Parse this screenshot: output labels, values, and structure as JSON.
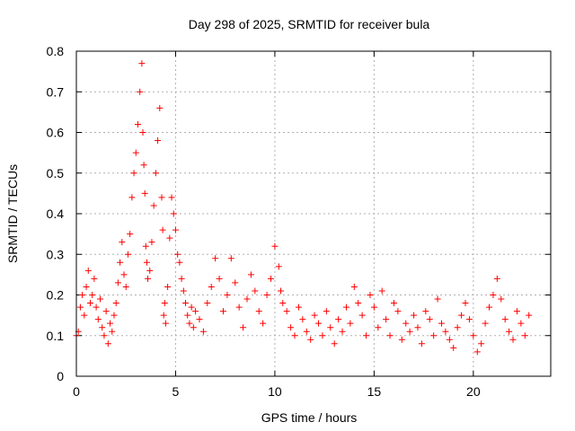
{
  "chart_data": {
    "type": "scatter",
    "title": "Day 298 of 2025, SRMTID for receiver bula",
    "xlabel": "GPS time / hours",
    "ylabel": "SRMTID / TECUs",
    "xlim": [
      0,
      23.9
    ],
    "ylim": [
      0,
      0.8
    ],
    "xticks": [
      0,
      5,
      10,
      15,
      20
    ],
    "yticks": [
      0,
      0.1,
      0.2,
      0.3,
      0.4,
      0.5,
      0.6,
      0.7,
      0.8
    ],
    "grid": true,
    "marker": "+",
    "series": [
      {
        "name": "SRMTID",
        "color": "#ff0000",
        "x": [
          0.0,
          0.1,
          0.2,
          0.3,
          0.4,
          0.5,
          0.6,
          0.7,
          0.8,
          0.9,
          1.0,
          1.1,
          1.2,
          1.3,
          1.4,
          1.5,
          1.6,
          1.7,
          1.8,
          1.9,
          2.0,
          2.1,
          2.2,
          2.3,
          2.4,
          2.5,
          2.6,
          2.7,
          2.8,
          2.9,
          3.0,
          3.1,
          3.2,
          3.3,
          3.35,
          3.4,
          3.45,
          3.5,
          3.55,
          3.6,
          3.7,
          3.8,
          3.9,
          4.0,
          4.1,
          4.2,
          4.3,
          4.35,
          4.4,
          4.45,
          4.5,
          4.6,
          4.7,
          4.8,
          4.9,
          5.0,
          5.1,
          5.2,
          5.3,
          5.4,
          5.5,
          5.6,
          5.7,
          5.8,
          5.9,
          6.0,
          6.2,
          6.4,
          6.6,
          6.8,
          7.0,
          7.2,
          7.4,
          7.6,
          7.8,
          8.0,
          8.2,
          8.4,
          8.6,
          8.8,
          9.0,
          9.2,
          9.4,
          9.6,
          9.8,
          10.0,
          10.2,
          10.3,
          10.4,
          10.6,
          10.8,
          11.0,
          11.2,
          11.4,
          11.6,
          11.8,
          12.0,
          12.2,
          12.4,
          12.6,
          12.8,
          13.0,
          13.2,
          13.4,
          13.6,
          13.8,
          14.0,
          14.2,
          14.4,
          14.6,
          14.8,
          15.0,
          15.2,
          15.4,
          15.6,
          15.8,
          16.0,
          16.2,
          16.4,
          16.6,
          16.8,
          17.0,
          17.2,
          17.4,
          17.6,
          17.8,
          18.0,
          18.2,
          18.4,
          18.6,
          18.8,
          19.0,
          19.2,
          19.4,
          19.6,
          19.8,
          20.0,
          20.2,
          20.4,
          20.6,
          20.8,
          21.0,
          21.2,
          21.4,
          21.6,
          21.8,
          22.0,
          22.2,
          22.4,
          22.6,
          22.8
        ],
        "y": [
          0.1,
          0.11,
          0.17,
          0.2,
          0.15,
          0.22,
          0.26,
          0.18,
          0.2,
          0.24,
          0.17,
          0.14,
          0.19,
          0.12,
          0.1,
          0.16,
          0.08,
          0.13,
          0.11,
          0.15,
          0.18,
          0.23,
          0.28,
          0.33,
          0.25,
          0.22,
          0.3,
          0.35,
          0.44,
          0.5,
          0.55,
          0.62,
          0.7,
          0.77,
          0.6,
          0.52,
          0.45,
          0.32,
          0.28,
          0.24,
          0.26,
          0.33,
          0.42,
          0.5,
          0.58,
          0.66,
          0.44,
          0.36,
          0.15,
          0.18,
          0.13,
          0.22,
          0.34,
          0.44,
          0.4,
          0.36,
          0.3,
          0.28,
          0.24,
          0.21,
          0.18,
          0.15,
          0.13,
          0.17,
          0.12,
          0.16,
          0.14,
          0.11,
          0.18,
          0.22,
          0.29,
          0.24,
          0.16,
          0.2,
          0.29,
          0.23,
          0.17,
          0.12,
          0.19,
          0.25,
          0.21,
          0.16,
          0.13,
          0.2,
          0.24,
          0.32,
          0.27,
          0.21,
          0.18,
          0.16,
          0.12,
          0.1,
          0.17,
          0.14,
          0.11,
          0.09,
          0.15,
          0.13,
          0.1,
          0.16,
          0.12,
          0.08,
          0.14,
          0.11,
          0.17,
          0.13,
          0.22,
          0.18,
          0.15,
          0.1,
          0.2,
          0.17,
          0.12,
          0.21,
          0.14,
          0.1,
          0.18,
          0.16,
          0.09,
          0.13,
          0.11,
          0.15,
          0.12,
          0.08,
          0.16,
          0.14,
          0.1,
          0.19,
          0.13,
          0.11,
          0.09,
          0.07,
          0.12,
          0.15,
          0.18,
          0.14,
          0.1,
          0.06,
          0.08,
          0.13,
          0.17,
          0.2,
          0.24,
          0.19,
          0.14,
          0.11,
          0.09,
          0.16,
          0.13,
          0.1,
          0.15
        ]
      }
    ]
  }
}
